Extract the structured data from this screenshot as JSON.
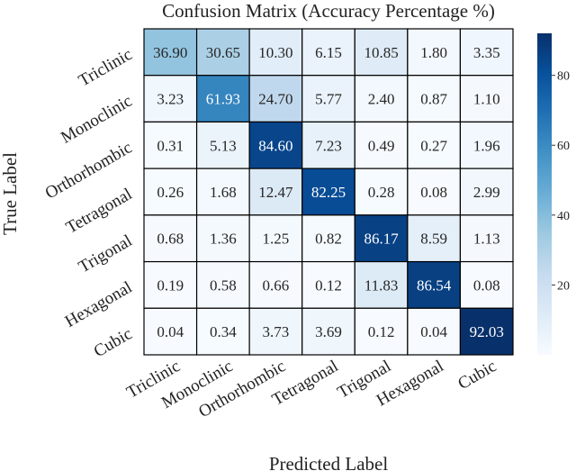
{
  "chart_data": {
    "type": "heatmap",
    "title": "Confusion Matrix (Accuracy Percentage %)",
    "xlabel": "Predicted Label",
    "ylabel": "True Label",
    "x_categories": [
      "Triclinic",
      "Monoclinic",
      "Orthorhombic",
      "Tetragonal",
      "Trigonal",
      "Hexagonal",
      "Cubic"
    ],
    "y_categories": [
      "Triclinic",
      "Monoclinic",
      "Orthorhombic",
      "Tetragonal",
      "Trigonal",
      "Hexagonal",
      "Cubic"
    ],
    "value_labels": [
      [
        "36.90",
        "30.65",
        "10.30",
        "6.15",
        "10.85",
        "1.80",
        "3.35"
      ],
      [
        "3.23",
        "61.93",
        "24.70",
        "5.77",
        "2.40",
        "0.87",
        "1.10"
      ],
      [
        "0.31",
        "5.13",
        "84.60",
        "7.23",
        "0.49",
        "0.27",
        "1.96"
      ],
      [
        "0.26",
        "1.68",
        "12.47",
        "82.25",
        "0.28",
        "0.08",
        "2.99"
      ],
      [
        "0.68",
        "1.36",
        "1.25",
        "0.82",
        "86.17",
        "8.59",
        "1.13"
      ],
      [
        "0.19",
        "0.58",
        "0.66",
        "0.12",
        "11.83",
        "86.54",
        "0.08"
      ],
      [
        "0.04",
        "0.34",
        "3.73",
        "3.69",
        "0.12",
        "0.04",
        "92.03"
      ]
    ],
    "colorbar": {
      "colormap": "Blues",
      "range": [
        0,
        92.03
      ],
      "ticks": [
        "20",
        "40",
        "60",
        "80"
      ]
    },
    "grid": true
  }
}
